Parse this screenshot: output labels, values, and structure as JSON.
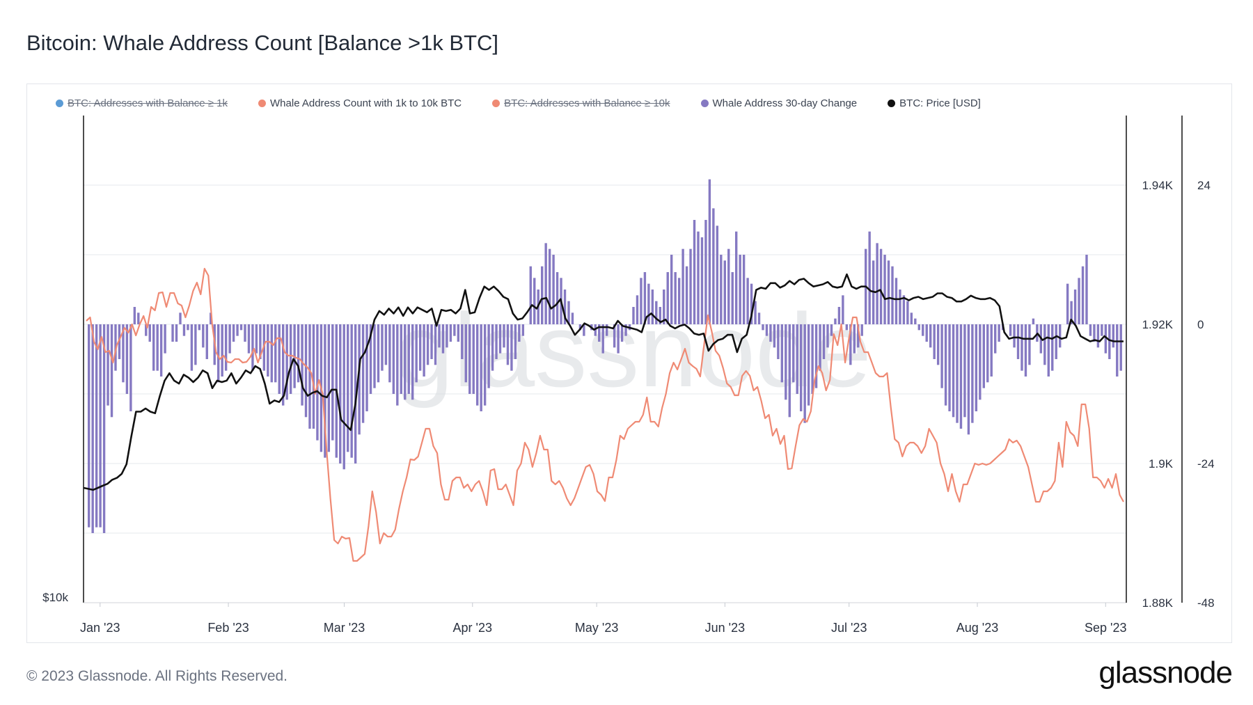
{
  "title": "Bitcoin: Whale Address Count [Balance >1k BTC]",
  "footer": "© 2023 Glassnode. All Rights Reserved.",
  "brand": "glassnode",
  "watermark": "glassnode",
  "legend": [
    {
      "label": "BTC: Addresses with Balance ≥ 1k",
      "color": "#5b9bd5",
      "hidden": true
    },
    {
      "label": "Whale Address Count with 1k to 10k BTC",
      "color": "#ef8a74",
      "hidden": false
    },
    {
      "label": "BTC: Addresses with Balance ≥ 10k",
      "color": "#ef8a74",
      "hidden": true
    },
    {
      "label": "Whale Address 30-day Change",
      "color": "#8579c2",
      "hidden": false
    },
    {
      "label": "BTC: Price [USD]",
      "color": "#111111",
      "hidden": false
    }
  ],
  "chart_data": {
    "type": "line+bar",
    "x_ticks": [
      "Jan '23",
      "Feb '23",
      "Mar '23",
      "Apr '23",
      "May '23",
      "Jun '23",
      "Jul '23",
      "Aug '23",
      "Sep '23"
    ],
    "x_range": [
      "2022-12-28",
      "2023-09-06"
    ],
    "left_axis": {
      "label": "$10k",
      "note": "log price axis, only lowest tick labelled"
    },
    "right_axis_count": {
      "ticks": [
        "1.88K",
        "1.9K",
        "1.92K",
        "1.94K"
      ],
      "range": [
        1880,
        1950
      ]
    },
    "right_axis_change": {
      "ticks": [
        "-48",
        "-24",
        "0",
        "24"
      ],
      "range": [
        -48,
        36
      ]
    },
    "series": [
      {
        "name": "Whale Address Count with 1k to 10k BTC",
        "axis": "count",
        "color": "#ef8a74",
        "values": [
          1920.5,
          1921.0,
          1917.5,
          1916.4,
          1918.2,
          1916.0,
          1916.2,
          1914.5,
          1917.0,
          1918.2,
          1919.5,
          1918.8,
          1920.0,
          1918.4,
          1920.0,
          1921.2,
          1919.5,
          1922.5,
          1922.0,
          1924.5,
          1924.6,
          1922.5,
          1924.5,
          1924.5,
          1923.0,
          1922.7,
          1921.0,
          1922.7,
          1924.8,
          1926.0,
          1924.3,
          1928.0,
          1927.0,
          1920.0,
          1916.0,
          1915.0,
          1915.5,
          1914.6,
          1914.5,
          1915.0,
          1915.0,
          1914.5,
          1914.6,
          1915.3,
          1916.5,
          1914.5,
          1916.0,
          1917.5,
          1917.5,
          1917.0,
          1918.0,
          1918.0,
          1916.0,
          1915.5,
          1915.5,
          1915.2,
          1915.0,
          1914.3,
          1913.8,
          1913.0,
          1910.0,
          1912.0,
          1910.0,
          1902.0,
          1895.0,
          1889.0,
          1888.5,
          1889.5,
          1889.2,
          1889.3,
          1886.0,
          1886.0,
          1886.5,
          1887.0,
          1891.0,
          1896.0,
          1893.0,
          1888.5,
          1890.0,
          1889.5,
          1889.5,
          1890.5,
          1893.5,
          1896.0,
          1898.0,
          1900.6,
          1900.5,
          1901.0,
          1903.0,
          1905.0,
          1905.0,
          1902.5,
          1901.5,
          1897.0,
          1894.8,
          1894.8,
          1897.5,
          1898.0,
          1898.0,
          1896.5,
          1897.0,
          1896.0,
          1897.0,
          1897.5,
          1896.0,
          1894.0,
          1899.0,
          1899.2,
          1896.3,
          1896.3,
          1897.0,
          1895.5,
          1894.0,
          1899.0,
          1900.0,
          1903.0,
          1902.0,
          1899.5,
          1901.5,
          1904.0,
          1902.0,
          1902.0,
          1897.5,
          1897.0,
          1897.5,
          1896.5,
          1895.0,
          1894.0,
          1895.0,
          1896.5,
          1898.0,
          1899.5,
          1899.8,
          1898.5,
          1896.0,
          1895.5,
          1894.6,
          1898.0,
          1898.0,
          1900.5,
          1904.0,
          1903.5,
          1905.0,
          1905.5,
          1906.0,
          1906.0,
          1907.0,
          1909.5,
          1906.0,
          1906.0,
          1905.3,
          1908.0,
          1910.0,
          1913.0,
          1914.5,
          1913.5,
          1915.0,
          1916.5,
          1914.5,
          1914.0,
          1913.6,
          1912.5,
          1917.0,
          1921.3,
          1919.0,
          1916.2,
          1915.5,
          1913.7,
          1911.5,
          1911.0,
          1909.8,
          1909.8,
          1912.6,
          1913.3,
          1912.6,
          1910.5,
          1911.0,
          1909.0,
          1906.5,
          1907.0,
          1904.0,
          1905.0,
          1902.8,
          1904.0,
          1899.2,
          1899.3,
          1902.5,
          1905.5,
          1906.4,
          1906.0,
          1907.5,
          1912.0,
          1914.0,
          1913.0,
          1910.5,
          1912.0,
          1918.6,
          1917.0,
          1920.0,
          1914.5,
          1918.0,
          1921.0,
          1921.0,
          1917.5,
          1916.0,
          1916.0,
          1914.5,
          1913.0,
          1912.5,
          1912.5,
          1913.0,
          1908.0,
          1903.5,
          1903.0,
          1901.0,
          1902.5,
          1903.0,
          1903.0,
          1902.5,
          1901.5,
          1902.5,
          1905.0,
          1904.0,
          1903.0,
          1900.0,
          1898.5,
          1896.0,
          1898.5,
          1896.0,
          1894.5,
          1897.0,
          1897.0,
          1898.5,
          1900.0,
          1899.8,
          1900.0,
          1899.8,
          1900.0,
          1900.5,
          1901.0,
          1901.5,
          1902.0,
          1903.5,
          1903.0,
          1903.3,
          1902.5,
          1901.0,
          1899.5,
          1897.0,
          1894.5,
          1894.5,
          1896.0,
          1896.0,
          1896.5,
          1897.5,
          1903.0,
          1899.5,
          1906.0,
          1904.5,
          1904.0,
          1902.5,
          1908.5,
          1908.5,
          1905.0,
          1898.0,
          1898.0,
          1897.5,
          1896.5,
          1897.8,
          1896.5,
          1898.5,
          1895.5,
          1894.5
        ]
      },
      {
        "name": "BTC: Price [USD]",
        "axis": "left-log",
        "color": "#111111",
        "values": [
          16800,
          16750,
          16700,
          16800,
          16900,
          17000,
          17200,
          17300,
          17500,
          18000,
          19500,
          21000,
          21000,
          21200,
          21000,
          20900,
          22000,
          23000,
          23500,
          23000,
          22800,
          23400,
          23200,
          22900,
          23200,
          23700,
          23500,
          22500,
          23000,
          22900,
          23000,
          23500,
          22800,
          23200,
          23700,
          23500,
          24000,
          23800,
          22800,
          21500,
          21700,
          21600,
          22000,
          23500,
          24500,
          24000,
          22500,
          22000,
          22200,
          22300,
          22000,
          21900,
          22400,
          22400,
          20500,
          20200,
          19900,
          21500,
          24500,
          25000,
          26000,
          27500,
          28200,
          27900,
          28400,
          28000,
          28500,
          27800,
          28500,
          28000,
          28500,
          28300,
          28100,
          28400,
          27000,
          28300,
          28200,
          28300,
          28000,
          28400,
          30000,
          28000,
          28100,
          29300,
          30300,
          30000,
          30300,
          29900,
          29400,
          29200,
          28000,
          27500,
          27600,
          28100,
          28700,
          28400,
          29200,
          29300,
          28400,
          28700,
          29200,
          27600,
          27000,
          26300,
          26700,
          27200,
          27000,
          26700,
          26900,
          26900,
          26900,
          26800,
          27400,
          27000,
          26900,
          26800,
          26700,
          26500,
          27700,
          28000,
          27600,
          27300,
          27500,
          27000,
          26800,
          27000,
          27100,
          26800,
          26400,
          26300,
          26400,
          25100,
          25600,
          25900,
          26000,
          26300,
          26300,
          25000,
          26000,
          26300,
          27800,
          30000,
          30200,
          30100,
          30600,
          30600,
          30200,
          30400,
          30800,
          30500,
          30900,
          31000,
          30600,
          30300,
          30400,
          30500,
          30700,
          30300,
          30200,
          30300,
          31400,
          30300,
          30100,
          30300,
          30300,
          29900,
          29800,
          30000,
          29200,
          29300,
          29200,
          29200,
          29300,
          29100,
          29300,
          29400,
          29200,
          29300,
          29400,
          29700,
          29700,
          29400,
          29300,
          29000,
          29000,
          29200,
          29500,
          29300,
          29200,
          29200,
          29300,
          29100,
          28600,
          26500,
          26000,
          26100,
          26100,
          26000,
          26000,
          26000,
          26400,
          25900,
          26100,
          26000,
          26200,
          26000,
          26100,
          27500,
          27000,
          26200,
          26000,
          25800,
          25900,
          25800,
          26200,
          25900,
          25800,
          25800,
          25800
        ],
        "range": [
          12000,
          50000
        ]
      },
      {
        "name": "Whale Address 30-day Change",
        "axis": "change",
        "color": "#8579c2",
        "values": [
          -35,
          -36,
          -35,
          -35,
          -36,
          -14,
          -16,
          -8,
          -6,
          -10,
          -12,
          -15,
          3,
          2,
          0,
          -2,
          -3,
          -8,
          -8,
          -9,
          -5,
          0,
          -3,
          -3,
          2,
          -2,
          -1,
          -8,
          -7,
          -1,
          -4,
          -6,
          2,
          -7,
          -10,
          -9,
          -8,
          -5,
          -3,
          -2,
          -1,
          -3,
          -5,
          -8,
          -5,
          -6,
          -8,
          -9,
          -10,
          -10,
          -12,
          -14,
          -13,
          -12,
          -11,
          -10,
          -14,
          -16,
          -18,
          -18,
          -20,
          -22,
          -23,
          -22,
          -20,
          -23,
          -24,
          -25,
          -22,
          -23,
          -24,
          -19,
          -17,
          -15,
          -12,
          -11,
          -10,
          -8,
          -7,
          -10,
          -12,
          -14,
          -12,
          -13,
          -12,
          -13,
          -10,
          -8,
          -9,
          -7,
          -6,
          -7,
          -4,
          -5,
          -4,
          -3,
          -2,
          -3,
          -6,
          -10,
          -12,
          -12,
          -14,
          -15,
          -14,
          -11,
          -8,
          -6,
          -5,
          -4,
          -7,
          -8,
          -6,
          -3,
          -2,
          0,
          10,
          8,
          6,
          10,
          14,
          13,
          12,
          9,
          8,
          6,
          4,
          2,
          0,
          -1,
          -2,
          0,
          -1,
          -2,
          -3,
          -5,
          -2,
          0,
          -4,
          -5,
          -3,
          -2,
          -1,
          3,
          5,
          8,
          9,
          7,
          6,
          4,
          3,
          6,
          9,
          12,
          9,
          8,
          13,
          10,
          13,
          18,
          16,
          15,
          18,
          25,
          20,
          17,
          12,
          11,
          13,
          9,
          16,
          12,
          12,
          8,
          7,
          4,
          2,
          -1,
          -2,
          -3,
          -4,
          -6,
          -10,
          -13,
          -16,
          -10,
          -12,
          -15,
          -17,
          -14,
          -12,
          -11,
          -8,
          -6,
          -4,
          -2,
          1,
          3,
          5,
          -1,
          -7,
          -5,
          -4,
          -2,
          13,
          16,
          11,
          14,
          13,
          12,
          11,
          10,
          8,
          6,
          5,
          4,
          2,
          1,
          -1,
          -2,
          -3,
          -4,
          -6,
          -7,
          -11,
          -14,
          -15,
          -16,
          -17,
          -18,
          -16,
          -19,
          -17,
          -15,
          -13,
          -11,
          -10,
          -9,
          -5,
          -3,
          -1,
          0,
          -2,
          -4,
          -6,
          -8,
          -9,
          -7,
          1,
          -3,
          -5,
          -7,
          -9,
          -8,
          -6,
          -4,
          0,
          7,
          4,
          6,
          8,
          10,
          12,
          -2,
          -3,
          -4,
          -2,
          -5,
          -6,
          -4,
          -9,
          -8
        ]
      }
    ]
  }
}
